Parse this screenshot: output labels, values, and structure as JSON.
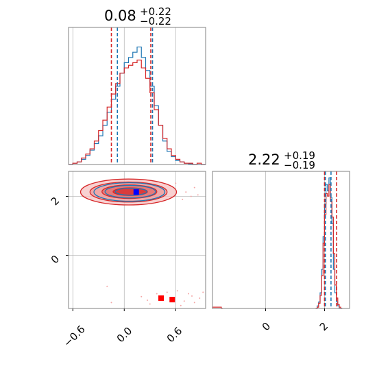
{
  "chart_data": {
    "type": "corner",
    "colors": {
      "red": "#d62728",
      "blue": "#1f77b4",
      "red_fill": "#f2b8b8",
      "grid": "#b0b0b0",
      "marker_red": "#ff0000",
      "marker_blue": "#0000ff"
    },
    "panels": [
      {
        "id": "p1-hist",
        "type": "histogram",
        "title": {
          "value": "0.08",
          "plus": "+0.22",
          "minus": "−0.22"
        },
        "xlim": [
          -0.65,
          0.95
        ],
        "xgrid": [
          -0.6,
          0.0,
          0.6
        ],
        "quantiles_red": [
          -0.15,
          0.31
        ],
        "quantiles_blue": [
          -0.08,
          0.33
        ],
        "series": [
          {
            "name": "blue",
            "color": "#1f77b4",
            "x": [
              -0.65,
              -0.6,
              -0.55,
              -0.5,
              -0.45,
              -0.4,
              -0.35,
              -0.3,
              -0.25,
              -0.2,
              -0.15,
              -0.1,
              -0.05,
              0.0,
              0.05,
              0.1,
              0.15,
              0.2,
              0.25,
              0.3,
              0.35,
              0.4,
              0.45,
              0.5,
              0.55,
              0.6,
              0.65,
              0.7,
              0.75,
              0.8,
              0.85,
              0.9
            ],
            "y": [
              0.0,
              0.01,
              0.02,
              0.04,
              0.07,
              0.11,
              0.16,
              0.22,
              0.3,
              0.4,
              0.5,
              0.6,
              0.7,
              0.78,
              0.82,
              0.86,
              0.9,
              0.82,
              0.72,
              0.6,
              0.45,
              0.3,
              0.18,
              0.1,
              0.06,
              0.03,
              0.02,
              0.01,
              0.005,
              0.0,
              0.0,
              0.0
            ]
          },
          {
            "name": "red",
            "color": "#d62728",
            "x": [
              -0.65,
              -0.6,
              -0.55,
              -0.5,
              -0.45,
              -0.4,
              -0.35,
              -0.3,
              -0.25,
              -0.2,
              -0.15,
              -0.1,
              -0.05,
              0.0,
              0.05,
              0.1,
              0.15,
              0.2,
              0.25,
              0.3,
              0.35,
              0.4,
              0.45,
              0.5,
              0.55,
              0.6,
              0.65,
              0.7,
              0.75,
              0.8,
              0.85,
              0.9
            ],
            "y": [
              0.0,
              0.01,
              0.02,
              0.05,
              0.08,
              0.12,
              0.18,
              0.26,
              0.34,
              0.44,
              0.54,
              0.62,
              0.7,
              0.74,
              0.76,
              0.78,
              0.8,
              0.74,
              0.66,
              0.55,
              0.42,
              0.3,
              0.2,
              0.12,
              0.07,
              0.04,
              0.02,
              0.01,
              0.01,
              0.0,
              0.01,
              0.0
            ]
          }
        ]
      },
      {
        "id": "p2-contour",
        "type": "scatter-contour",
        "xlim": [
          -0.65,
          0.95
        ],
        "ylim": [
          -1.8,
          2.85
        ],
        "xgrid": [
          -0.6,
          0.0,
          0.6
        ],
        "ygrid": [
          0,
          2
        ],
        "yticks": [
          {
            "value": 2,
            "label": "2"
          },
          {
            "value": 0,
            "label": "0"
          }
        ],
        "xticks": [
          {
            "value": -0.6,
            "label": "−0.6"
          },
          {
            "value": 0.0,
            "label": "0.0"
          },
          {
            "value": 0.6,
            "label": "0.6"
          }
        ],
        "contours": [
          {
            "level": 1,
            "cx": 0.05,
            "cy": 2.15,
            "rx": 0.56,
            "ry": 0.44
          },
          {
            "level": 2,
            "cx": 0.05,
            "cy": 2.15,
            "rx": 0.45,
            "ry": 0.34
          },
          {
            "level": 3,
            "cx": 0.06,
            "cy": 2.16,
            "rx": 0.32,
            "ry": 0.23
          },
          {
            "level": 4,
            "cx": 0.07,
            "cy": 2.16,
            "rx": 0.2,
            "ry": 0.13
          }
        ],
        "markers": [
          {
            "name": "blue-square",
            "x": 0.14,
            "y": 2.15,
            "color": "#0000ff"
          },
          {
            "name": "red-square-1",
            "x": 0.43,
            "y": -1.45,
            "color": "#ff0000"
          },
          {
            "name": "red-square-2",
            "x": 0.56,
            "y": -1.5,
            "color": "#ff0000"
          }
        ],
        "scatter": [
          [
            0.62,
            -1.2
          ],
          [
            0.7,
            -1.55
          ],
          [
            0.75,
            -1.3
          ],
          [
            0.82,
            -1.6
          ],
          [
            0.38,
            -1.3
          ],
          [
            0.3,
            -1.65
          ],
          [
            0.2,
            -1.4
          ],
          [
            0.88,
            -1.45
          ],
          [
            -0.2,
            -1.05
          ],
          [
            -0.15,
            -1.6
          ],
          [
            0.5,
            -1.25
          ],
          [
            0.66,
            -1.7
          ],
          [
            0.79,
            -1.38
          ],
          [
            0.27,
            -1.52
          ],
          [
            0.92,
            -1.25
          ],
          [
            0.72,
            2.15
          ],
          [
            0.82,
            2.3
          ],
          [
            0.78,
            2.0
          ],
          [
            0.6,
            2.45
          ],
          [
            -0.5,
            2.1
          ],
          [
            -0.45,
            2.35
          ],
          [
            0.68,
            1.9
          ],
          [
            0.86,
            2.05
          ]
        ]
      },
      {
        "id": "p3-hist",
        "type": "histogram",
        "title": {
          "value": "2.22",
          "plus": "+0.19",
          "minus": "−0.19"
        },
        "xlim": [
          -1.8,
          2.85
        ],
        "xgrid": [
          0,
          2
        ],
        "xticks": [
          {
            "value": 0,
            "label": "0"
          },
          {
            "value": 2,
            "label": "2"
          }
        ],
        "quantiles_red": [
          2.0,
          2.41
        ],
        "quantiles_blue": [
          2.03,
          2.22
        ],
        "series": [
          {
            "name": "blue",
            "color": "#1f77b4",
            "x": [
              1.7,
              1.75,
              1.8,
              1.85,
              1.9,
              1.95,
              2.0,
              2.05,
              2.1,
              2.15,
              2.2,
              2.25,
              2.3,
              2.35,
              2.4,
              2.45,
              2.5,
              2.55
            ],
            "y": [
              0.0,
              0.02,
              0.05,
              0.12,
              0.3,
              0.55,
              0.8,
              0.95,
              0.9,
              1.0,
              0.85,
              0.65,
              0.3,
              0.12,
              0.05,
              0.02,
              0.0,
              0.0
            ]
          },
          {
            "name": "red",
            "color": "#d62728",
            "x": [
              1.7,
              1.75,
              1.8,
              1.85,
              1.9,
              1.95,
              2.0,
              2.05,
              2.1,
              2.15,
              2.2,
              2.25,
              2.3,
              2.35,
              2.4,
              2.45,
              2.5,
              2.55
            ],
            "y": [
              0.0,
              0.01,
              0.04,
              0.1,
              0.25,
              0.5,
              0.72,
              0.88,
              0.86,
              0.95,
              0.82,
              0.7,
              0.42,
              0.18,
              0.08,
              0.03,
              0.01,
              0.0
            ]
          },
          {
            "name": "red-tail",
            "color": "#d62728",
            "x": [
              -1.8,
              -1.75,
              -1.7,
              -1.65,
              -1.6,
              -1.55,
              -1.5
            ],
            "y": [
              0.01,
              0.01,
              0.01,
              0.01,
              0.01,
              0.01,
              0.0
            ]
          }
        ]
      }
    ]
  }
}
